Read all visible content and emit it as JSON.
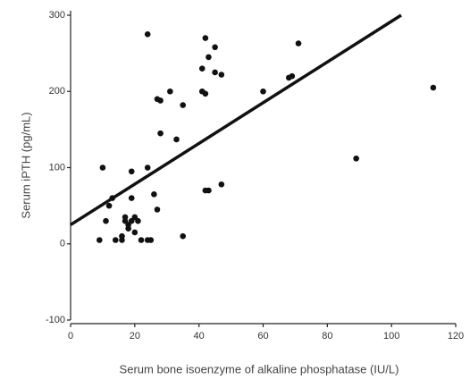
{
  "chart_data": {
    "type": "scatter",
    "xlabel": "Serum bone isoenzyme of alkaline phosphatase (IU/L)",
    "ylabel": "Serum iPTH (pg/mL)",
    "x": [
      10,
      9,
      11,
      12,
      13,
      14,
      16,
      16,
      17,
      17,
      18,
      18,
      19,
      19,
      19,
      20,
      20,
      21,
      22,
      24,
      24,
      25,
      24,
      26,
      27,
      27,
      28,
      28,
      31,
      33,
      35,
      35,
      41,
      41,
      42,
      42,
      43,
      42,
      43,
      45,
      45,
      47,
      47,
      60,
      68,
      69,
      71,
      89,
      113
    ],
    "values": [
      100,
      5,
      30,
      50,
      60,
      5,
      5,
      10,
      30,
      35,
      20,
      25,
      60,
      95,
      30,
      15,
      35,
      30,
      5,
      100,
      5,
      5,
      275,
      65,
      45,
      190,
      145,
      188,
      200,
      137,
      10,
      182,
      200,
      230,
      197,
      70,
      70,
      270,
      245,
      258,
      225,
      222,
      78,
      200,
      218,
      220,
      263,
      112,
      205
    ],
    "color": "#111111",
    "fit": {
      "x": [
        0,
        103
      ],
      "values": [
        25,
        300
      ],
      "color": "#111111"
    },
    "xlim": [
      0,
      120
    ],
    "xticks": [
      0,
      20,
      40,
      60,
      80,
      100,
      120
    ],
    "ylim": [
      -100,
      300
    ],
    "yticks": [
      -100,
      0,
      100,
      200,
      300
    ],
    "grid": false
  }
}
